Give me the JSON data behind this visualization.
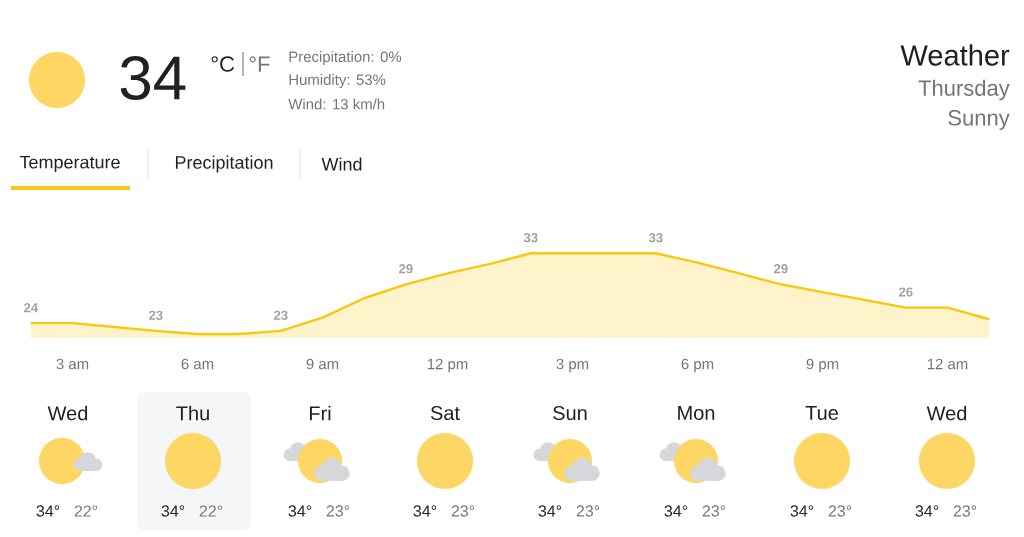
{
  "chart_data": {
    "type": "area",
    "title": "Weather",
    "subtitle": "Thursday",
    "annotations": [
      "34",
      "°C",
      "°F",
      "Precipitation: 0%",
      "Humidity: 53%",
      "Wind: 13 km/h",
      "Sunny",
      "Temperature",
      "Precipitation",
      "Wind",
      "Wed",
      "34°",
      "22°",
      "Thu",
      "34°",
      "22°",
      "Fri",
      "34°",
      "23°",
      "Sat",
      "34°",
      "23°",
      "Sun",
      "34°",
      "23°",
      "Mon",
      "34°",
      "23°",
      "Tue",
      "34°",
      "23°",
      "Wed",
      "34°",
      "23°"
    ],
    "categories": [
      null,
      "3 am",
      null,
      null,
      "6 am",
      null,
      null,
      "9 am",
      null,
      null,
      "12 pm",
      null,
      null,
      "3 pm",
      null,
      null,
      "6 pm",
      null,
      null,
      "9 pm",
      null,
      null,
      "12 am",
      null
    ],
    "values": [
      24,
      24,
      23.5,
      23,
      22.6,
      22.6,
      23,
      24.7,
      27.2,
      29,
      30.4,
      31.6,
      33,
      33,
      33,
      33,
      31.8,
      30.4,
      29,
      28,
      27,
      26,
      26,
      24.5
    ],
    "value_labels": [
      "24",
      null,
      null,
      "23",
      null,
      null,
      "23",
      null,
      null,
      "29",
      null,
      null,
      "33",
      null,
      null,
      "33",
      null,
      null,
      "29",
      null,
      null,
      "26",
      null,
      null
    ],
    "color": "#f9c80e"
  }
}
